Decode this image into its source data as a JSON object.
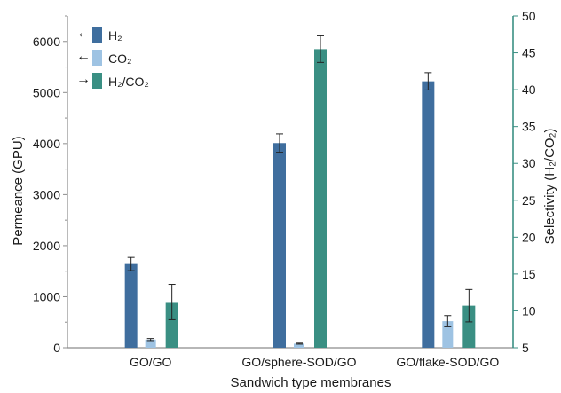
{
  "chart_data": {
    "type": "bar",
    "xlabel": "Sandwich type membranes",
    "ylabel_left": "Permeance (GPU)",
    "ylabel_right": "Selectivity (H₂/CO₂)",
    "categories": [
      "GO/GO",
      "GO/sphere-SOD/GO",
      "GO/flake-SOD/GO"
    ],
    "left_axis": {
      "min": 0,
      "max": 6500,
      "ticks": [
        0,
        1000,
        2000,
        3000,
        4000,
        5000,
        6000
      ],
      "minor_ticks": [
        500,
        1500,
        2500,
        3500,
        4500,
        5500,
        6500
      ]
    },
    "right_axis": {
      "min": 5,
      "max": 50,
      "ticks": [
        5,
        10,
        15,
        20,
        25,
        30,
        35,
        40,
        45,
        50
      ]
    },
    "legend_position": "top-left",
    "series": [
      {
        "name": "H₂",
        "axis": "left",
        "color": "#3f6e9e",
        "arrow": "←",
        "values": [
          1640,
          4010,
          5220
        ],
        "errors": [
          130,
          180,
          170
        ]
      },
      {
        "name": "CO₂",
        "axis": "left",
        "color": "#9ec3e3",
        "arrow": "←",
        "values": [
          160,
          80,
          520
        ],
        "errors": [
          20,
          10,
          110
        ]
      },
      {
        "name": "H₂/CO₂",
        "axis": "right",
        "color": "#3a8f83",
        "arrow": "→",
        "values": [
          11.2,
          45.5,
          10.7
        ],
        "errors": [
          2.4,
          1.8,
          2.2
        ]
      }
    ],
    "axis_color_right": "#3a8f83",
    "grid": false
  }
}
